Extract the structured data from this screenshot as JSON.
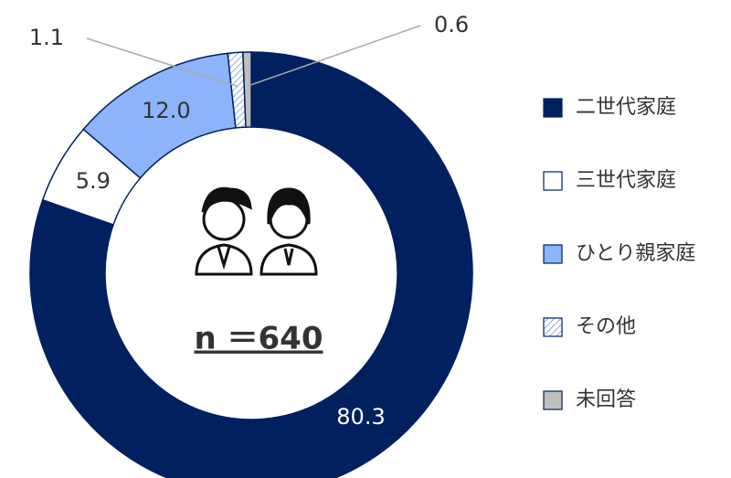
{
  "chart_data": {
    "type": "donut",
    "categories": [
      "二世代家庭",
      "三世代家庭",
      "ひとり親家庭",
      "その他",
      "未回答"
    ],
    "values": [
      80.3,
      5.9,
      12.0,
      1.1,
      0.6
    ],
    "value_labels": [
      "80.3",
      "5.9",
      "12.0",
      "1.1",
      "0.6"
    ],
    "colors": [
      "#002060",
      "#ffffff",
      "#8db3fa",
      "#8db3fa",
      "#bfbfbf"
    ],
    "hatch": [
      false,
      false,
      false,
      true,
      false
    ],
    "center_label": "n ＝640"
  }
}
